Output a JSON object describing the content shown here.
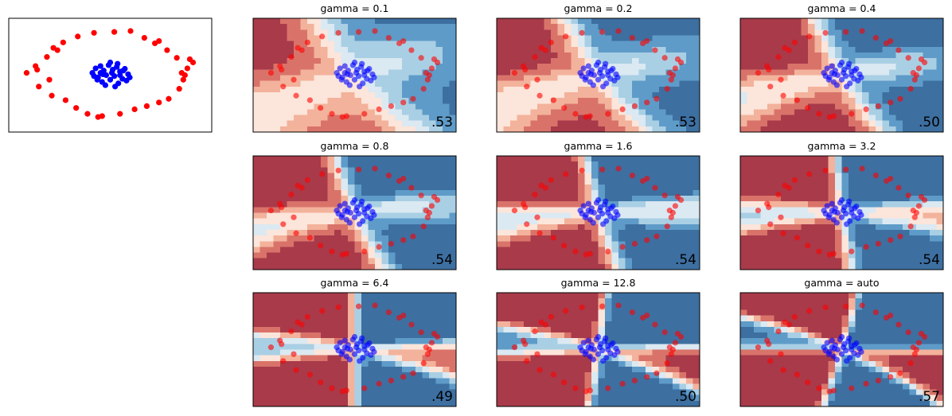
{
  "chart_data": [
    {
      "type": "scatter",
      "xlim": [
        -1.25,
        1.25
      ],
      "ylim": [
        -1.25,
        1.25
      ],
      "series": [
        {
          "color": "#ff0000",
          "x": [
            0.05,
            0.25,
            -0.2,
            -0.4,
            -0.58,
            -0.65,
            -0.78,
            -0.92,
            -1.03,
            -0.9,
            -0.75,
            -0.88,
            -0.72,
            -0.55,
            -0.42,
            -0.28,
            -0.1,
            0.12,
            0.3,
            0.45,
            0.6,
            0.72,
            0.85,
            0.9,
            0.88,
            0.95,
            1.02,
            0.82,
            0.7,
            0.55,
            0.42,
            0.6,
            -0.7,
            0.98,
            0.92,
            -0.15
          ],
          "y": [
            0.95,
            0.97,
            0.93,
            0.85,
            0.72,
            0.55,
            0.4,
            0.2,
            0.05,
            0.12,
            -0.1,
            -0.25,
            -0.45,
            -0.55,
            -0.72,
            -0.85,
            -0.9,
            -0.85,
            -0.75,
            -0.68,
            -0.6,
            -0.52,
            -0.3,
            -0.1,
            0.05,
            0.15,
            0.28,
            0.38,
            0.55,
            0.7,
            0.82,
            0.75,
            0.6,
            0.35,
            0.0,
            -0.92
          ]
        },
        {
          "color": "#0000ff",
          "x": [
            -0.22,
            -0.18,
            -0.12,
            -0.08,
            -0.02,
            0.03,
            0.08,
            0.12,
            0.18,
            0.22,
            -0.15,
            -0.05,
            0.05,
            0.15,
            -0.1,
            0.0,
            0.1,
            0.2,
            -0.2,
            -0.12,
            0.02,
            0.12,
            -0.06,
            0.06,
            0.16,
            -0.16,
            0.0,
            0.09,
            -0.09,
            0.24
          ],
          "y": [
            0.05,
            0.15,
            0.2,
            0.1,
            0.22,
            0.12,
            0.18,
            0.08,
            0.14,
            0.02,
            -0.05,
            0.0,
            -0.02,
            -0.08,
            -0.15,
            -0.1,
            -0.18,
            -0.12,
            -0.02,
            0.05,
            0.05,
            0.0,
            -0.22,
            -0.25,
            0.1,
            -0.1,
            0.28,
            0.25,
            0.02,
            -0.05
          ]
        }
      ]
    },
    {
      "type": "decision",
      "title": "gamma = 0.1",
      "score": 0.53,
      "score_label": ".53"
    },
    {
      "type": "decision",
      "title": "gamma = 0.2",
      "score": 0.53,
      "score_label": ".53"
    },
    {
      "type": "decision",
      "title": "gamma = 0.4",
      "score": 0.5,
      "score_label": ".50"
    },
    {
      "type": "decision",
      "title": "gamma = 0.8",
      "score": 0.54,
      "score_label": ".54"
    },
    {
      "type": "decision",
      "title": "gamma = 1.6",
      "score": 0.54,
      "score_label": ".54"
    },
    {
      "type": "decision",
      "title": "gamma = 3.2",
      "score": 0.54,
      "score_label": ".54"
    },
    {
      "type": "decision",
      "title": "gamma = 6.4",
      "score": 0.49,
      "score_label": ".49"
    },
    {
      "type": "decision",
      "title": "gamma = 12.8",
      "score": 0.5,
      "score_label": ".50"
    },
    {
      "type": "decision",
      "title": "gamma = auto",
      "score": 0.57,
      "score_label": ".57"
    }
  ]
}
